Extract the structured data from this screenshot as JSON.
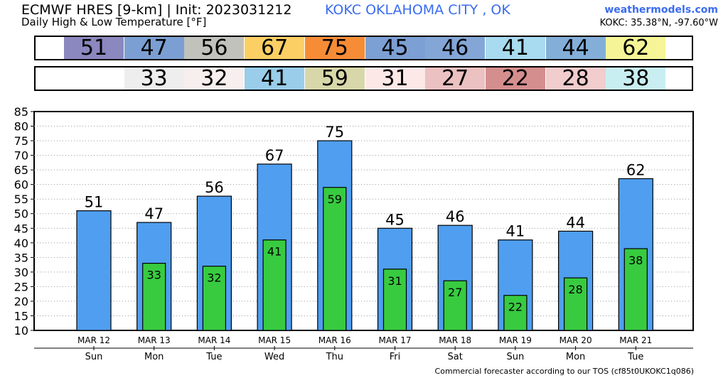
{
  "header": {
    "title": "ECMWF HRES [9-km] | Init: 2023031212",
    "station": "KOKC OKLAHOMA CITY  , OK",
    "subtitle": "Daily High & Low Temperature [°F]",
    "brand": "weathermodels.com",
    "coords": "KOKC: 35.38°N, -97.60°W"
  },
  "footer": "Commercial forecaster according to our TOS (cf85t0UKOKC1q086)",
  "strips": {
    "high": [
      {
        "value": "51",
        "color": "#8b87bf"
      },
      {
        "value": "47",
        "color": "#7b9fd2"
      },
      {
        "value": "56",
        "color": "#c2c2bc"
      },
      {
        "value": "67",
        "color": "#fbcf63"
      },
      {
        "value": "75",
        "color": "#f78c36"
      },
      {
        "value": "45",
        "color": "#7c9fd4"
      },
      {
        "value": "46",
        "color": "#83a6d6"
      },
      {
        "value": "41",
        "color": "#a8dbf0"
      },
      {
        "value": "44",
        "color": "#82aed8"
      },
      {
        "value": "62",
        "color": "#f5f597"
      }
    ],
    "low": [
      {
        "value": "",
        "color": "#ffffff"
      },
      {
        "value": "33",
        "color": "#eeeeee"
      },
      {
        "value": "32",
        "color": "#f7eeee"
      },
      {
        "value": "41",
        "color": "#99cde9"
      },
      {
        "value": "59",
        "color": "#d8d7a9"
      },
      {
        "value": "31",
        "color": "#fde8e8"
      },
      {
        "value": "27",
        "color": "#ecc1c1"
      },
      {
        "value": "22",
        "color": "#d58e8e"
      },
      {
        "value": "28",
        "color": "#f1cdcd"
      },
      {
        "value": "38",
        "color": "#c9eef2"
      }
    ]
  },
  "chart_data": {
    "type": "bar",
    "categories": [
      "MAR 12",
      "MAR 13",
      "MAR 14",
      "MAR 15",
      "MAR 16",
      "MAR 17",
      "MAR 18",
      "MAR 19",
      "MAR 20",
      "MAR 21"
    ],
    "weekdays": [
      "Sun",
      "Mon",
      "Tue",
      "Wed",
      "Thu",
      "Fri",
      "Sat",
      "Sun",
      "Mon",
      "Tue"
    ],
    "series": [
      {
        "name": "High",
        "values": [
          51,
          47,
          56,
          67,
          75,
          45,
          46,
          41,
          44,
          62
        ],
        "color": "#4f9ef0"
      },
      {
        "name": "Low",
        "values": [
          null,
          33,
          32,
          41,
          59,
          31,
          27,
          22,
          28,
          38
        ],
        "color": "#38cb40"
      }
    ],
    "ylim": [
      10,
      85
    ],
    "yticks": [
      10,
      15,
      20,
      25,
      30,
      35,
      40,
      45,
      50,
      55,
      60,
      65,
      70,
      75,
      80,
      85
    ],
    "grid": true
  }
}
